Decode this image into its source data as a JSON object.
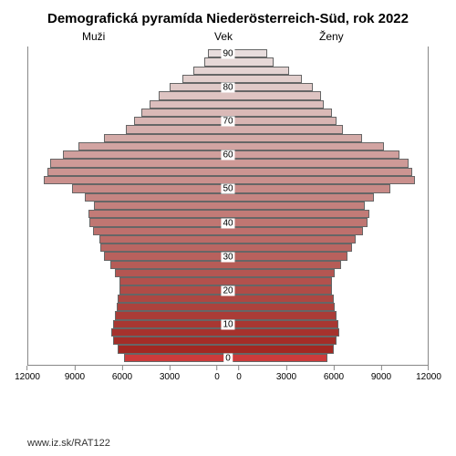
{
  "title": "Demografická pyramída Niederösterreich-Süd, rok 2022",
  "labels": {
    "men": "Muži",
    "age": "Vek",
    "women": "Ženy"
  },
  "source_url": "www.iz.sk/RAT122",
  "chart": {
    "type": "population-pyramid",
    "x_axis": {
      "max": 12000,
      "ticks": [
        0,
        3000,
        6000,
        9000,
        12000
      ],
      "tick_labels": [
        "0",
        "3000",
        "6000",
        "9000",
        "12000"
      ]
    },
    "y_axis": {
      "ticks": [
        0,
        10,
        20,
        30,
        40,
        50,
        60,
        70,
        80,
        90
      ],
      "tick_labels": [
        "0",
        "10",
        "20",
        "30",
        "40",
        "50",
        "60",
        "70",
        "80",
        "90"
      ]
    },
    "age_groups_top_to_bottom": [
      "90+",
      "87.5",
      "85",
      "82.5",
      "80",
      "77.5",
      "75",
      "72.5",
      "70",
      "67.5",
      "65",
      "62.5",
      "60",
      "57.5",
      "55",
      "52.5",
      "50",
      "47.5",
      "45",
      "42.5",
      "40",
      "37.5",
      "35",
      "32.5",
      "30",
      "27.5",
      "25",
      "22.5",
      "20",
      "17.5",
      "15",
      "12.5",
      "10",
      "7.5",
      "5",
      "2.5",
      "0"
    ],
    "men_values": [
      600,
      800,
      1500,
      2200,
      3000,
      3700,
      4300,
      4800,
      5300,
      5800,
      7200,
      8800,
      9800,
      10600,
      10800,
      11000,
      9200,
      8400,
      7800,
      8200,
      8100,
      7900,
      7500,
      7400,
      7200,
      6800,
      6500,
      6200,
      6200,
      6300,
      6400,
      6500,
      6600,
      6700,
      6600,
      6300,
      5900
    ],
    "women_values": [
      1800,
      2200,
      3200,
      4000,
      4700,
      5200,
      5400,
      5900,
      6200,
      6600,
      7800,
      9200,
      10200,
      10800,
      11000,
      11200,
      9600,
      8600,
      8000,
      8300,
      8200,
      7900,
      7400,
      7200,
      6900,
      6500,
      6100,
      5900,
      5900,
      6000,
      6100,
      6200,
      6300,
      6400,
      6200,
      6000,
      5600
    ],
    "styling": {
      "background_color": "#ffffff",
      "border_color": "#888888",
      "bar_border_color": "#666666",
      "bar_border_width": 1,
      "title_fontsize": 15,
      "label_fontsize": 12,
      "tick_fontsize": 10,
      "color_gradient_top": "#e8dddd",
      "color_gradient_bottom": "#cc3b3b",
      "gradient_steps": [
        "#e8dddd",
        "#e6d8d7",
        "#e4d3d2",
        "#e2cecc",
        "#e0c9c7",
        "#dec4c2",
        "#dcbebd",
        "#dab9b7",
        "#d8b4b2",
        "#d6afad",
        "#d4aaa7",
        "#d2a4a2",
        "#d09f9d",
        "#ce9a97",
        "#cc9592",
        "#ca908d",
        "#c88a87",
        "#c68582",
        "#c4807d",
        "#c27b77",
        "#c07672",
        "#be706d",
        "#bc6b67",
        "#ba6662",
        "#b8615d",
        "#b65c57",
        "#b45652",
        "#b2514d",
        "#b04c47",
        "#ae4742",
        "#ac423d",
        "#aa3c37",
        "#a83732",
        "#a6322d",
        "#a42d27",
        "#a22822",
        "#cc3b3b"
      ]
    }
  }
}
